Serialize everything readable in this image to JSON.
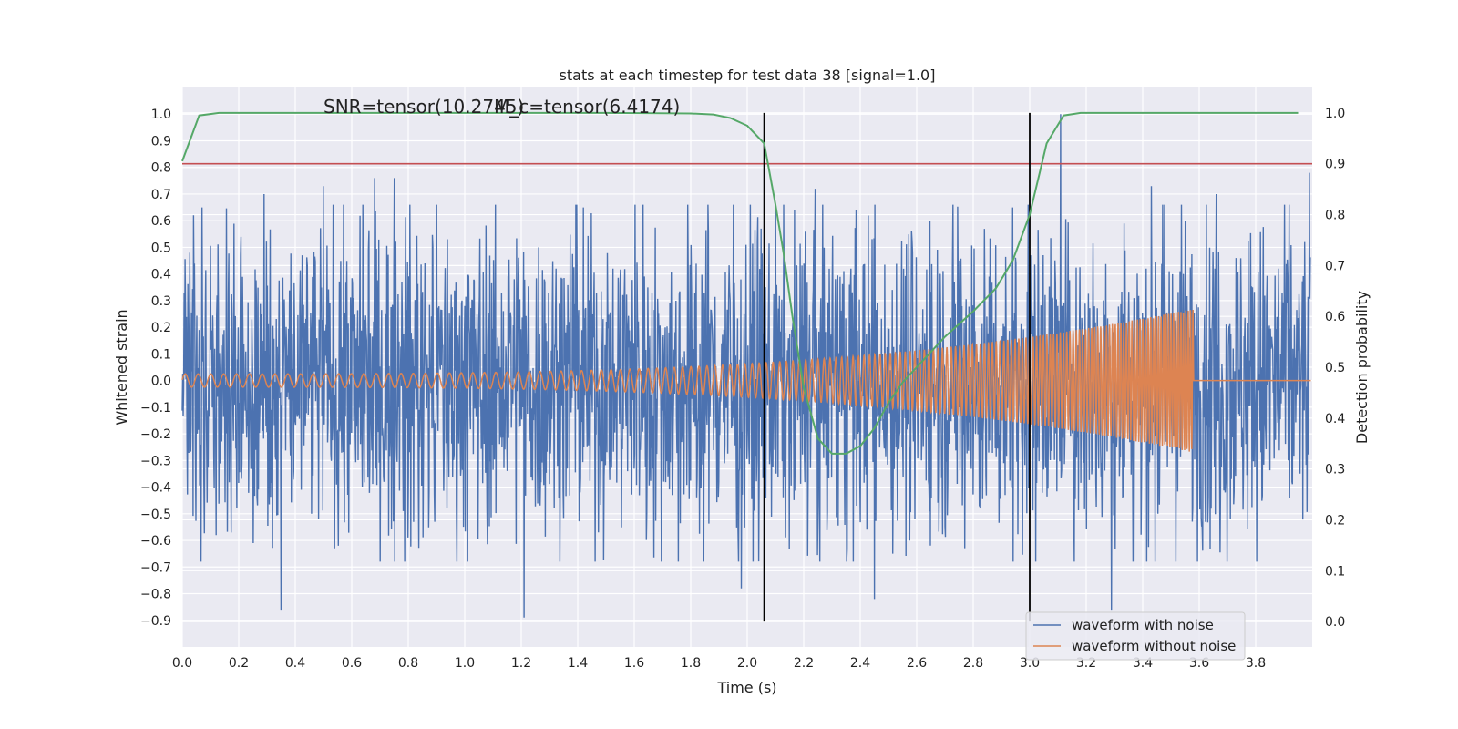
{
  "chart_data": {
    "type": "line",
    "title": "stats at each timestep for test data 38 [signal=1.0]",
    "xlabel": "Time (s)",
    "ylabel_left": "Whitened strain",
    "ylabel_right": "Detection probability",
    "xlim": [
      0.0,
      4.0
    ],
    "ylim_left": [
      -1.0,
      1.1
    ],
    "ylim_right": [
      -0.05,
      1.05
    ],
    "x_ticks": [
      0.0,
      0.2,
      0.4,
      0.6,
      0.8,
      1.0,
      1.2,
      1.4,
      1.6,
      1.8,
      2.0,
      2.2,
      2.4,
      2.6,
      2.8,
      3.0,
      3.2,
      3.4,
      3.6,
      3.8
    ],
    "x_tick_labels": [
      "0.0",
      "0.2",
      "0.4",
      "0.6",
      "0.8",
      "1.0",
      "1.2",
      "1.4",
      "1.6",
      "1.8",
      "2.0",
      "2.2",
      "2.4",
      "2.6",
      "2.8",
      "3.0",
      "3.2",
      "3.4",
      "3.6",
      "3.8"
    ],
    "y_ticks_left": [
      1.0,
      0.9,
      0.8,
      0.7,
      0.6,
      0.5,
      0.4,
      0.3,
      0.2,
      0.1,
      0.0,
      -0.1,
      -0.2,
      -0.3,
      -0.4,
      -0.5,
      -0.6,
      -0.7,
      -0.8,
      -0.9
    ],
    "y_tick_labels_left": [
      "1.0",
      "0.9",
      "0.8",
      "0.7",
      "0.6",
      "0.5",
      "0.4",
      "0.3",
      "0.2",
      "0.1",
      "0.0",
      "−0.1",
      "−0.2",
      "−0.3",
      "−0.4",
      "−0.5",
      "−0.6",
      "−0.7",
      "−0.8",
      "−0.9"
    ],
    "y_ticks_right": [
      1.0,
      0.9,
      0.8,
      0.7,
      0.6,
      0.5,
      0.4,
      0.3,
      0.2,
      0.1,
      0.0
    ],
    "y_tick_labels_right": [
      "1.0",
      "0.9",
      "0.8",
      "0.7",
      "0.6",
      "0.5",
      "0.4",
      "0.3",
      "0.2",
      "0.1",
      "0.0"
    ],
    "grid": true,
    "legend_position": "bottom-right",
    "legend": [
      "waveform with noise",
      "waveform without noise"
    ],
    "annotations": [
      "SNR=tensor(10.2745)",
      "M_c=tensor(6.4174)"
    ],
    "series": [
      {
        "name": "waveform with noise",
        "color": "#4c72b0",
        "axis": "left",
        "description_values": "noise envelope: typical |y| up to ~0.45, peaks to ~0.7, spike 1.0 at t=3.11",
        "peaks": [
          {
            "x": 0.04,
            "y": 0.62
          },
          {
            "x": 0.07,
            "y": 0.65
          },
          {
            "x": 0.12,
            "y": -0.58
          },
          {
            "x": 0.29,
            "y": 0.7
          },
          {
            "x": 0.35,
            "y": -0.86
          },
          {
            "x": 0.5,
            "y": 0.73
          },
          {
            "x": 0.68,
            "y": 0.76
          },
          {
            "x": 0.75,
            "y": 0.76
          },
          {
            "x": 1.21,
            "y": -0.89
          },
          {
            "x": 1.42,
            "y": 0.65
          },
          {
            "x": 1.98,
            "y": 0.7
          },
          {
            "x": 1.98,
            "y": -0.78
          },
          {
            "x": 2.24,
            "y": 0.72
          },
          {
            "x": 2.45,
            "y": -0.82
          },
          {
            "x": 2.94,
            "y": 0.65
          },
          {
            "x": 3.11,
            "y": 1.0
          },
          {
            "x": 3.29,
            "y": -0.86
          },
          {
            "x": 3.43,
            "y": 0.73
          },
          {
            "x": 3.66,
            "y": 0.7
          },
          {
            "x": 3.99,
            "y": 0.78
          }
        ]
      },
      {
        "name": "waveform without noise",
        "color": "#dd8452",
        "axis": "left",
        "chirp_start": 0.0,
        "chirp_end": 3.58,
        "amplitude_start": 0.025,
        "amplitude_end": 0.27,
        "frequency_start_hz": 22,
        "frequency_end_hz": 120
      },
      {
        "name": "detection probability",
        "color": "#55a868",
        "axis": "right",
        "x": [
          0.0,
          0.06,
          0.13,
          0.3,
          0.6,
          1.0,
          1.5,
          1.8,
          1.88,
          1.94,
          2.0,
          2.06,
          2.1,
          2.13,
          2.16,
          2.2,
          2.25,
          2.3,
          2.35,
          2.4,
          2.45,
          2.5,
          2.55,
          2.6,
          2.7,
          2.8,
          2.88,
          2.94,
          3.0,
          3.06,
          3.12,
          3.18,
          3.3,
          3.5,
          3.7,
          3.95
        ],
        "y": [
          0.905,
          0.995,
          1.0,
          1.0,
          1.0,
          1.0,
          1.0,
          0.999,
          0.997,
          0.99,
          0.975,
          0.94,
          0.82,
          0.72,
          0.6,
          0.46,
          0.36,
          0.33,
          0.33,
          0.345,
          0.38,
          0.43,
          0.47,
          0.5,
          0.56,
          0.61,
          0.655,
          0.71,
          0.8,
          0.94,
          0.995,
          1.0,
          1.0,
          1.0,
          1.0,
          1.0
        ]
      }
    ],
    "hlines": [
      {
        "axis": "right",
        "y": 0.9,
        "color": "#c44e52"
      }
    ],
    "vlines": [
      {
        "x": 2.06,
        "ymin_right": 0.0,
        "ymax_right": 1.0,
        "color": "#000000"
      },
      {
        "x": 3.0,
        "ymin_right": 0.0,
        "ymax_right": 1.0,
        "color": "#000000"
      }
    ]
  }
}
